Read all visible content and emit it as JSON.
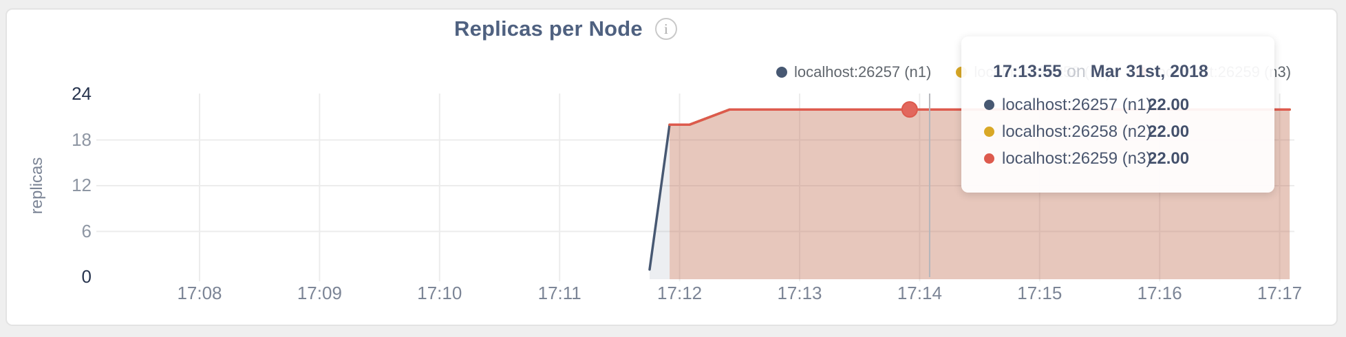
{
  "page": {
    "background": "#efefef",
    "card_background": "#ffffff",
    "card_border": "#e3e3e3"
  },
  "header": {
    "title": "Replicas per Node",
    "info_icon_glyph": "i"
  },
  "legend": {
    "position": "top-right",
    "items": [
      {
        "label": "localhost:26257 (n1)",
        "color": "#475872"
      },
      {
        "label": "localhost:26258 (n2)",
        "color": "#d9a826"
      },
      {
        "label": "localhost:26259 (n3)",
        "color": "#dd5a4d"
      }
    ]
  },
  "tooltip": {
    "time": "17:13:55",
    "connector": "on",
    "date": "Mar 31st, 2018",
    "rows": [
      {
        "label": "localhost:26257 (n1)",
        "value": "22.00",
        "color": "#475872"
      },
      {
        "label": "localhost:26258 (n2)",
        "value": "22.00",
        "color": "#d9a826"
      },
      {
        "label": "localhost:26259 (n3)",
        "value": "22.00",
        "color": "#dd5a4d"
      }
    ]
  },
  "colors": {
    "grid": "#ececec",
    "guideline": "#b4b6bb",
    "hover_dot_fill": "#e2675d",
    "hover_dot_stroke": "#dd5a4d",
    "axis_tick": "#8e96a3",
    "axis_tick_emphasis": "#26334d",
    "axis_label": "#7c8596"
  },
  "chart_data": {
    "type": "area",
    "title": "Replicas per Node",
    "xlabel": "",
    "ylabel": "replicas",
    "ylim": [
      0,
      24
    ],
    "y_ticks": [
      0,
      6,
      12,
      18,
      24
    ],
    "y_ticks_emphasized": [
      0,
      24
    ],
    "y_gridlines": [
      6,
      12,
      18
    ],
    "x_ticks": [
      "17:08",
      "17:09",
      "17:10",
      "17:11",
      "17:12",
      "17:13",
      "17:14",
      "17:15",
      "17:16",
      "17:17"
    ],
    "x_range": [
      "17:07:08",
      "17:17:05"
    ],
    "grid": true,
    "legend_position": "top-right",
    "series": [
      {
        "name": "localhost:26257 (n1)",
        "color": "#475872",
        "fill": "rgba(71,88,114,0.10)",
        "points": [
          [
            "17:11:45",
            1
          ],
          [
            "17:11:55",
            20
          ],
          [
            "17:12:05",
            20
          ],
          [
            "17:12:25",
            22
          ],
          [
            "17:13:55",
            22
          ],
          [
            "17:17:05",
            22
          ]
        ]
      },
      {
        "name": "localhost:26258 (n2)",
        "color": "#d9a826",
        "fill": "rgba(217,168,38,0.10)",
        "points": [
          [
            "17:11:55",
            20
          ],
          [
            "17:12:05",
            20
          ],
          [
            "17:12:25",
            22
          ],
          [
            "17:13:55",
            22
          ],
          [
            "17:17:05",
            22
          ]
        ]
      },
      {
        "name": "localhost:26259 (n3)",
        "color": "#dd5a4d",
        "fill": "rgba(221,90,77,0.22)",
        "points": [
          [
            "17:11:55",
            20
          ],
          [
            "17:12:05",
            20
          ],
          [
            "17:12:25",
            22
          ],
          [
            "17:13:55",
            22
          ],
          [
            "17:17:05",
            22
          ]
        ]
      }
    ],
    "hover": {
      "time": "17:13:55",
      "value": 22,
      "guideline_time": "17:14:05",
      "highlight_series": "localhost:26259 (n3)"
    }
  }
}
